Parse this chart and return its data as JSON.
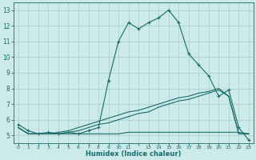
{
  "xlabel": "Humidex (Indice chaleur)",
  "bg_color": "#cceaea",
  "line_color": "#1a6b6b",
  "grid_color": "#b0d0d0",
  "x_values": [
    0,
    1,
    2,
    3,
    4,
    5,
    6,
    7,
    8,
    9,
    10,
    11,
    12,
    13,
    14,
    15,
    16,
    17,
    18,
    19,
    20,
    21,
    22,
    23
  ],
  "line1_y": [
    5.7,
    5.3,
    5.1,
    5.2,
    5.1,
    5.2,
    5.1,
    5.3,
    5.5,
    8.5,
    11.0,
    12.2,
    11.8,
    12.2,
    12.5,
    13.0,
    12.2,
    10.2,
    9.5,
    8.8,
    7.5,
    7.9,
    5.5,
    4.7
  ],
  "line2_y": [
    5.5,
    5.1,
    5.1,
    5.1,
    5.1,
    5.1,
    5.1,
    5.1,
    5.1,
    5.1,
    5.1,
    5.2,
    5.2,
    5.2,
    5.2,
    5.2,
    5.2,
    5.2,
    5.2,
    5.2,
    5.2,
    5.2,
    5.2,
    5.1
  ],
  "line3_y": [
    5.5,
    5.1,
    5.1,
    5.1,
    5.1,
    5.2,
    5.3,
    5.5,
    5.7,
    5.8,
    6.0,
    6.2,
    6.4,
    6.5,
    6.8,
    7.0,
    7.2,
    7.3,
    7.5,
    7.7,
    7.9,
    7.5,
    5.1,
    5.1
  ],
  "line4_y": [
    5.5,
    5.1,
    5.1,
    5.1,
    5.2,
    5.3,
    5.5,
    5.7,
    5.9,
    6.1,
    6.3,
    6.5,
    6.6,
    6.8,
    7.0,
    7.2,
    7.4,
    7.5,
    7.7,
    7.8,
    8.0,
    7.5,
    5.1,
    5.1
  ],
  "ylim": [
    4.5,
    13.5
  ],
  "xlim": [
    -0.5,
    23.5
  ],
  "yticks": [
    5,
    6,
    7,
    8,
    9,
    10,
    11,
    12,
    13
  ],
  "xtick_labels": [
    "0",
    "1",
    "2",
    "3",
    "4",
    "5",
    "6",
    "7",
    "8",
    "9",
    "10",
    "11",
    "",
    "13",
    "14",
    "15",
    "16",
    "17",
    "18",
    "19",
    "20",
    "21",
    "22",
    "23"
  ]
}
